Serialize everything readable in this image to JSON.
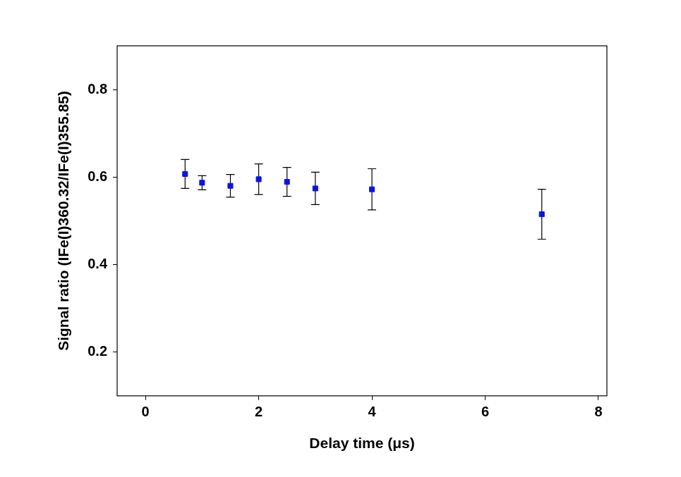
{
  "chart_data": {
    "type": "scatter",
    "xlabel": "Delay time (μs)",
    "ylabel": "Signal ratio (IFe(I)360.32/IFe(I)355.85)",
    "x": [
      0.7,
      1.0,
      1.5,
      2.0,
      2.5,
      3.0,
      4.0,
      7.0
    ],
    "values": [
      0.607,
      0.587,
      0.58,
      0.595,
      0.589,
      0.574,
      0.572,
      0.515
    ],
    "errors": [
      0.033,
      0.016,
      0.026,
      0.035,
      0.033,
      0.037,
      0.047,
      0.057
    ],
    "color": "#0a14e6",
    "marker": "square",
    "xlim": [
      -0.5,
      8.15
    ],
    "ylim": [
      0.1,
      0.9
    ],
    "xticks": [
      0,
      2,
      4,
      6,
      8
    ],
    "yticks": [
      0.2,
      0.4,
      0.6,
      0.8
    ],
    "grid": false
  }
}
